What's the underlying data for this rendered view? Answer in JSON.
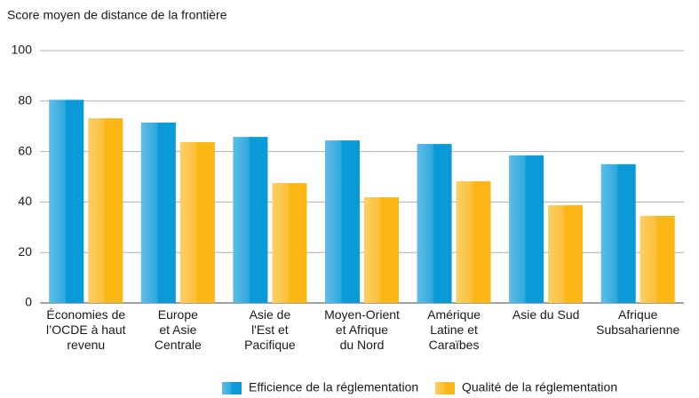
{
  "chart_data": {
    "type": "bar",
    "title": "Score moyen de distance de la frontière",
    "categories": [
      [
        "Économies de",
        "l’OCDE à haut",
        "revenu"
      ],
      [
        "Europe",
        "et Asie",
        "Centrale"
      ],
      [
        "Asie de",
        "l'Est et",
        "Pacifique"
      ],
      [
        "Moyen-Orient",
        "et Afrique",
        "du Nord"
      ],
      [
        "Amérique",
        "Latine et",
        "Caraïbes"
      ],
      [
        "Asie du Sud"
      ],
      [
        "Afrique",
        "Subsaharienne"
      ]
    ],
    "series": [
      {
        "name": "Efficience de la réglementation",
        "color": "#0a9ad8",
        "values": [
          80.5,
          71.5,
          65.8,
          64.4,
          63,
          58.5,
          55
        ]
      },
      {
        "name": "Qualité de la réglementation",
        "color": "#fbb515",
        "values": [
          73.2,
          63.7,
          47.5,
          41.9,
          48.2,
          38.7,
          34.5
        ]
      }
    ],
    "ylim": [
      0,
      100
    ],
    "yticks": [
      0,
      20,
      40,
      60,
      80,
      100
    ],
    "grid": true,
    "legend": "bottom"
  }
}
